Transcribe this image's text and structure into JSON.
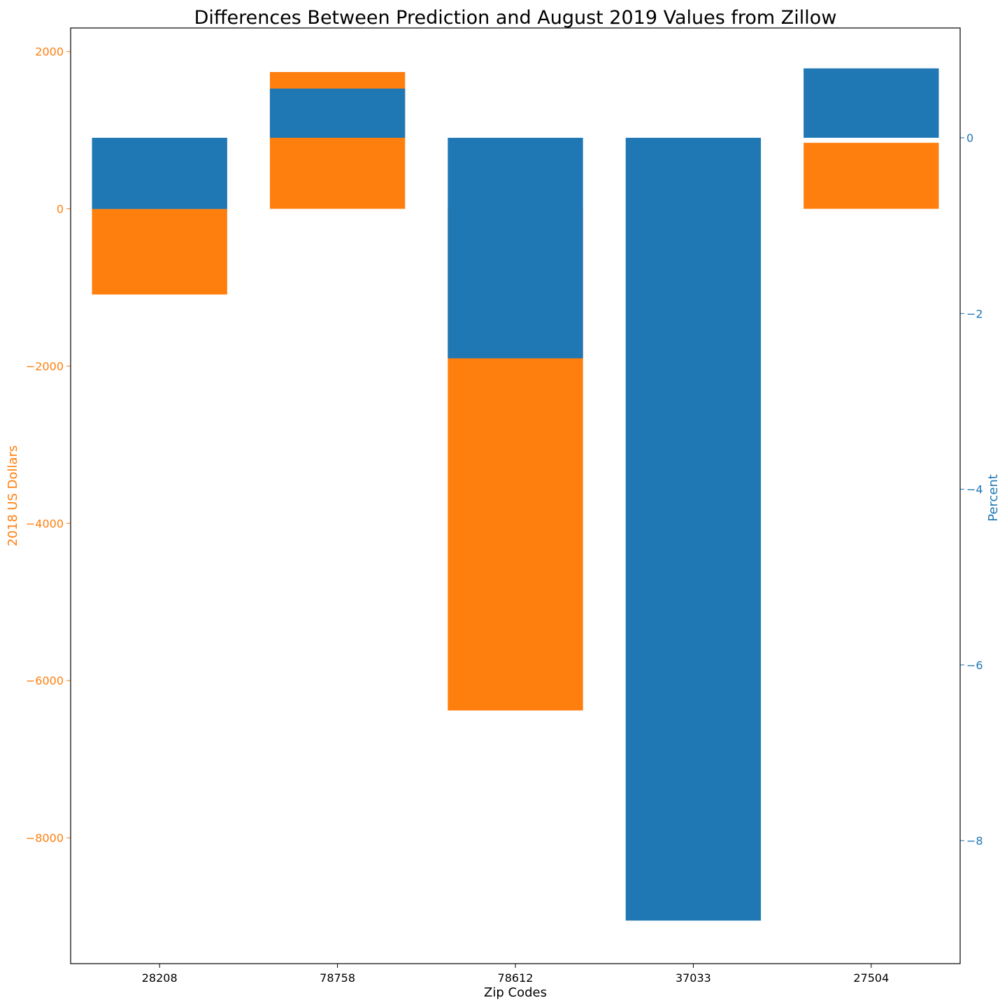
{
  "chart_data": {
    "type": "bar",
    "title": "Differences Between Prediction and August 2019 Values from Zillow",
    "xlabel": "Zip Codes",
    "categories": [
      "28208",
      "78758",
      "78612",
      "37033",
      "27504"
    ],
    "y_left": {
      "label": "2018 US Dollars",
      "color": "#ff7f0e",
      "ylim": [
        -9600,
        2300
      ],
      "ticks": [
        2000,
        0,
        -2000,
        -4000,
        -6000,
        -8000
      ],
      "tick_labels": [
        "2000",
        "0",
        "−2000",
        "−4000",
        "−6000",
        "−8000"
      ]
    },
    "y_right": {
      "label": "Percent",
      "color": "#1f77b4",
      "ylim": [
        -9.4,
        1.25
      ],
      "ticks": [
        0,
        -2,
        -4,
        -6,
        -8
      ],
      "tick_labels": [
        "0",
        "−2",
        "−4",
        "−6",
        "−8"
      ]
    },
    "series": [
      {
        "axis": "left",
        "color": "#ff7f0e",
        "values": [
          -1090,
          1740,
          -6380,
          0,
          840
        ]
      },
      {
        "axis": "right",
        "color": "#1f77b4",
        "values": [
          -0.81,
          0.56,
          -2.51,
          -8.91,
          0.79
        ]
      }
    ],
    "grid": false,
    "legend": "none"
  }
}
